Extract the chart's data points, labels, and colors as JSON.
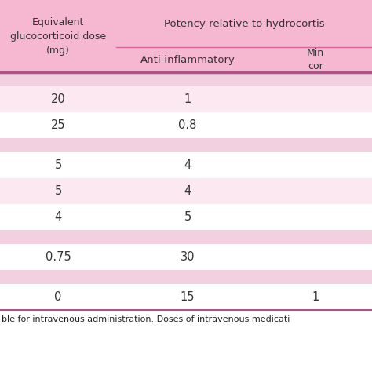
{
  "col1_header": "Equivalent\nglucocorticoid dose\n(mg)",
  "col2_header": "Potency relative to hydrocortis",
  "col2_sub": "Anti-inflammatory",
  "col3_sub": "Min\ncor",
  "rows": [
    {
      "col1": "",
      "col2": "",
      "col3": "",
      "type": "pink_group"
    },
    {
      "col1": "20",
      "col2": "1",
      "col3": "",
      "type": "pink_data"
    },
    {
      "col1": "25",
      "col2": "0.8",
      "col3": "",
      "type": "white_data"
    },
    {
      "col1": "",
      "col2": "",
      "col3": "",
      "type": "pink_group"
    },
    {
      "col1": "5",
      "col2": "4",
      "col3": "",
      "type": "white_data"
    },
    {
      "col1": "5",
      "col2": "4",
      "col3": "",
      "type": "pink_data"
    },
    {
      "col1": "4",
      "col2": "5",
      "col3": "",
      "type": "white_data"
    },
    {
      "col1": "",
      "col2": "",
      "col3": "",
      "type": "pink_group"
    },
    {
      "col1": "0.75",
      "col2": "30",
      "col3": "",
      "type": "white_data"
    },
    {
      "col1": "",
      "col2": "",
      "col3": "",
      "type": "pink_group"
    },
    {
      "col1": "0",
      "col2": "15",
      "col3": "1",
      "type": "white_data"
    }
  ],
  "footer": "ble for intravenous administration. Doses of intravenous medicati",
  "color_header_bg": "#f5b8d0",
  "color_pink_row": "#fce8f0",
  "color_white_row": "#ffffff",
  "color_pink_group": "#f5d5e5",
  "color_divider": "#d4679a",
  "color_bottom_line": "#b05090",
  "color_text": "#333333",
  "color_footer_line": "#b05090"
}
